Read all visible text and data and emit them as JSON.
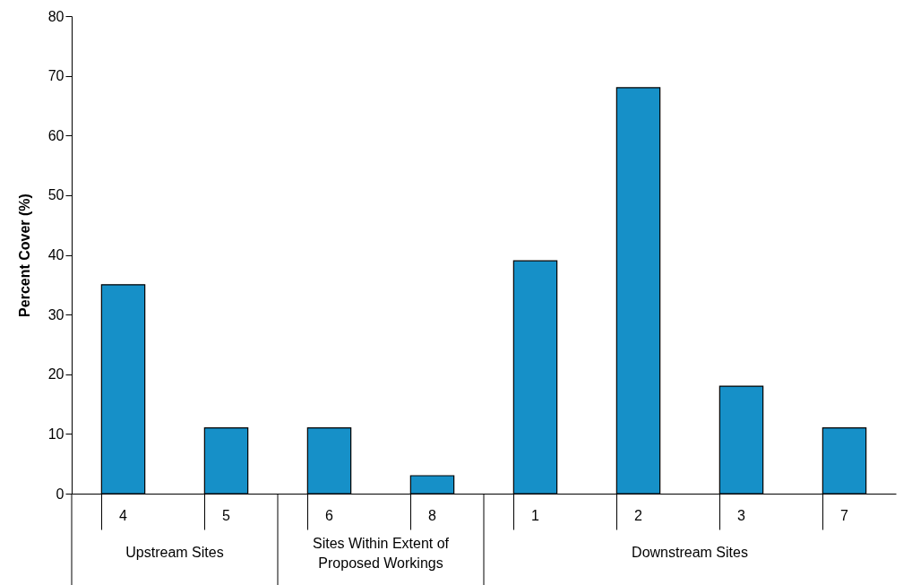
{
  "chart_data": {
    "type": "bar",
    "ylabel": "Percent Cover (%)",
    "categories": [
      "4",
      "5",
      "6",
      "8",
      "1",
      "2",
      "3",
      "7"
    ],
    "values": [
      35,
      11,
      11,
      3,
      39,
      68,
      18,
      11
    ],
    "color": "#1690c8",
    "ylim": [
      0,
      80
    ],
    "yticks": [
      0,
      10,
      20,
      30,
      40,
      50,
      60,
      70,
      80
    ],
    "grid": false,
    "annotations": [
      "Upstream Sites",
      "Sites Within Extent of Proposed Workings",
      "Downstream Sites"
    ]
  }
}
